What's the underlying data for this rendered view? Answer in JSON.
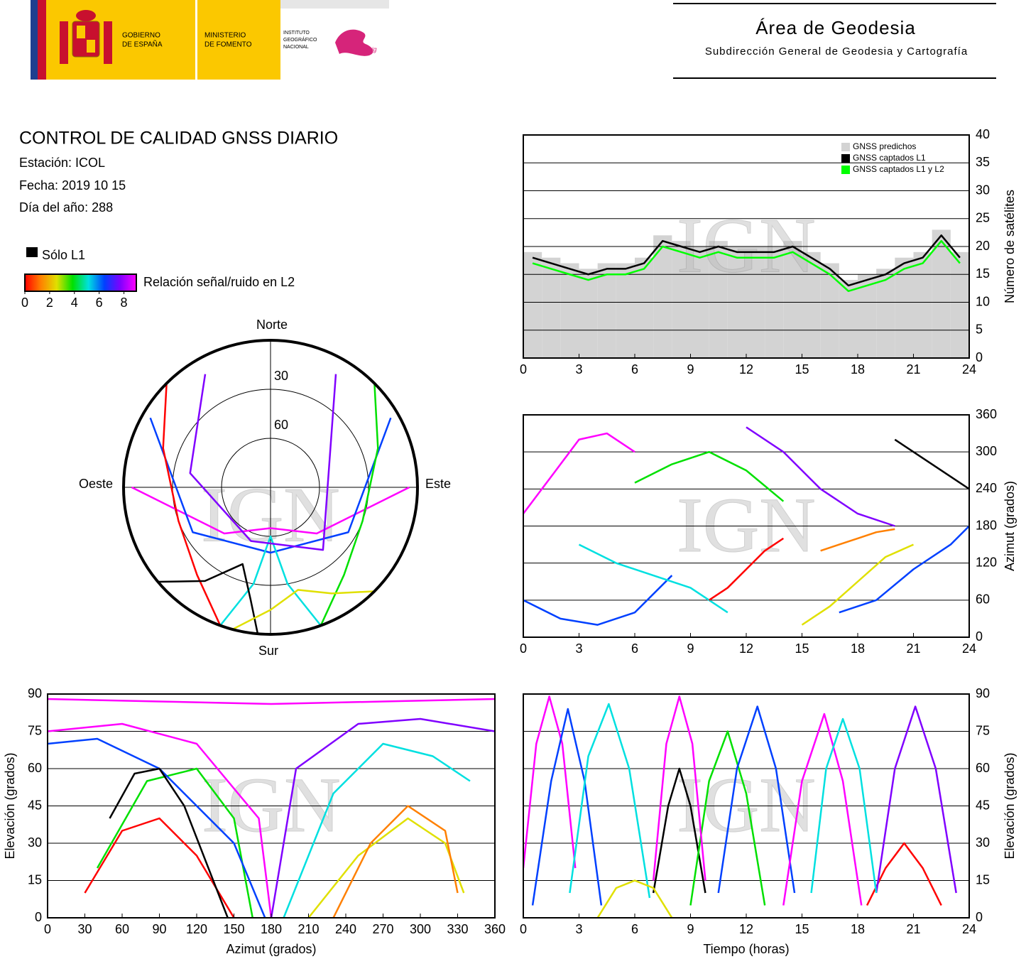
{
  "header": {
    "gobierno": [
      "GOBIERNO",
      "DE ESPAÑA"
    ],
    "ministerio": [
      "MINISTERIO",
      "DE FOMENTO"
    ],
    "instituto": [
      "INSTITUTO",
      "GEOGRÁFICO",
      "NACIONAL"
    ],
    "cnig": "cnig",
    "area": "Área de Geodesia",
    "subdireccion": "Subdirección General de Geodesia y Cartografía"
  },
  "info": {
    "title": "CONTROL DE CALIDAD GNSS DIARIO",
    "station": "Estación: ICOL",
    "date": "Fecha: 2019 10 15",
    "doy": "Día del año: 288",
    "legend_l1": "Sólo L1",
    "legend_l1_color": "#000000",
    "legend_snr": "Relación señal/ruido en L2",
    "colorbar": {
      "colors": [
        "#ff0000",
        "#ff8000",
        "#e0e000",
        "#00e000",
        "#00e0e0",
        "#0040ff",
        "#8000ff",
        "#ff00ff"
      ],
      "lim": [
        0,
        9
      ],
      "ticks": [
        0,
        2,
        4,
        6,
        8
      ]
    }
  },
  "chart_data": [
    {
      "type": "line",
      "watermark": "IGN",
      "y_label": "Número de satélites",
      "y_axis_side": "right",
      "legend": "top-right",
      "grid": true,
      "xlim": [
        0,
        24
      ],
      "xticks": [
        0,
        3,
        6,
        9,
        12,
        15,
        18,
        21,
        24
      ],
      "ylim": [
        0,
        40
      ],
      "yticks": [
        0,
        5,
        10,
        15,
        20,
        25,
        30,
        35,
        40
      ],
      "x": [
        0.5,
        1.5,
        2.5,
        3.5,
        4.5,
        5.5,
        6.5,
        7.5,
        8.5,
        9.5,
        10.5,
        11.5,
        12.5,
        13.5,
        14.5,
        15.5,
        16.5,
        17.5,
        18.5,
        19.5,
        20.5,
        21.5,
        22.5,
        23.5
      ],
      "series": [
        {
          "name": "GNSS predichos",
          "color": "#d3d3d3",
          "style": "bar",
          "values": [
            19,
            18,
            17,
            16,
            17,
            17,
            18,
            22,
            21,
            20,
            21,
            20,
            20,
            20,
            21,
            19,
            17,
            14,
            15,
            16,
            18,
            19,
            23,
            19
          ]
        },
        {
          "name": "GNSS captados L1",
          "color": "#000000",
          "style": "line",
          "values": [
            18,
            17,
            16,
            15,
            16,
            16,
            17,
            21,
            20,
            19,
            20,
            19,
            19,
            19,
            20,
            18,
            16,
            13,
            14,
            15,
            17,
            18,
            22,
            18
          ]
        },
        {
          "name": "GNSS captados L1 y L2",
          "color": "#00ff00",
          "style": "line",
          "values": [
            17,
            16,
            15,
            14,
            15,
            15,
            16,
            20,
            19,
            18,
            19,
            18,
            18,
            18,
            19,
            17,
            15,
            12,
            13,
            14,
            16,
            17,
            21,
            17
          ]
        }
      ]
    },
    {
      "type": "trace",
      "watermark": "IGN",
      "y_label": "Azimut (grados)",
      "y_axis_side": "right",
      "grid": true,
      "xlim": [
        0,
        24
      ],
      "xticks": [
        0,
        3,
        6,
        9,
        12,
        15,
        18,
        21,
        24
      ],
      "ylim": [
        0,
        360
      ],
      "yticks": [
        0,
        60,
        120,
        180,
        240,
        300,
        360
      ],
      "series": [
        {
          "color": "#ff00ff",
          "x": [
            0,
            1.5,
            3,
            4.5,
            6
          ],
          "values": [
            200,
            260,
            320,
            330,
            300
          ]
        },
        {
          "color": "#0040ff",
          "x": [
            0,
            2,
            4,
            6,
            8
          ],
          "values": [
            60,
            30,
            20,
            40,
            100
          ]
        },
        {
          "color": "#00e0e0",
          "x": [
            3,
            5,
            7,
            9,
            11
          ],
          "values": [
            150,
            120,
            100,
            80,
            40
          ]
        },
        {
          "color": "#00e000",
          "x": [
            6,
            8,
            10,
            12,
            14
          ],
          "values": [
            250,
            280,
            300,
            270,
            220
          ]
        },
        {
          "color": "#ff0000",
          "x": [
            10,
            11,
            12,
            13,
            14
          ],
          "values": [
            60,
            80,
            110,
            140,
            160
          ]
        },
        {
          "color": "#8000ff",
          "x": [
            12,
            14,
            16,
            18,
            20
          ],
          "values": [
            340,
            300,
            240,
            200,
            180
          ]
        },
        {
          "color": "#e0e000",
          "x": [
            15,
            16.5,
            18,
            19.5,
            21
          ],
          "values": [
            20,
            50,
            90,
            130,
            150
          ]
        },
        {
          "color": "#000000",
          "x": [
            20,
            21,
            22,
            23,
            24
          ],
          "values": [
            320,
            300,
            280,
            260,
            240
          ]
        },
        {
          "color": "#ff8000",
          "x": [
            16,
            17,
            18,
            19,
            20
          ],
          "values": [
            140,
            150,
            160,
            170,
            175
          ]
        },
        {
          "color": "#0040ff",
          "x": [
            17,
            19,
            21,
            23,
            24
          ],
          "values": [
            40,
            60,
            110,
            150,
            180
          ]
        }
      ]
    },
    {
      "type": "polar",
      "watermark": "IGN",
      "labels": {
        "north": "Norte",
        "south": "Sur",
        "east": "Este",
        "west": "Oeste"
      },
      "rlim": [
        90,
        0
      ],
      "rticks": [
        30,
        60
      ],
      "series": [
        {
          "color": "#ff00ff",
          "azimuth": [
            270,
            225,
            180,
            135,
            90
          ],
          "values": [
            5,
            50,
            65,
            50,
            5
          ]
        },
        {
          "color": "#0040ff",
          "azimuth": [
            300,
            240,
            180,
            120,
            60
          ],
          "values": [
            5,
            35,
            50,
            35,
            5
          ]
        },
        {
          "color": "#00e0e0",
          "azimuth": [
            200,
            190,
            180,
            170,
            160
          ],
          "values": [
            0,
            30,
            60,
            30,
            0
          ]
        },
        {
          "color": "#ff0000",
          "azimuth": [
            315,
            290,
            250,
            220,
            200
          ],
          "values": [
            0,
            20,
            30,
            20,
            0
          ]
        },
        {
          "color": "#00e000",
          "azimuth": [
            45,
            70,
            110,
            140,
            160
          ],
          "values": [
            0,
            20,
            30,
            20,
            0
          ]
        },
        {
          "color": "#000000",
          "azimuth": [
            230,
            215,
            200,
            190,
            185
          ],
          "values": [
            0,
            20,
            40,
            20,
            0
          ]
        },
        {
          "color": "#8000ff",
          "azimuth": [
            330,
            280,
            200,
            140,
            30
          ],
          "values": [
            10,
            40,
            55,
            40,
            10
          ]
        },
        {
          "color": "#e0e000",
          "azimuth": [
            135,
            150,
            165,
            180,
            195
          ],
          "values": [
            0,
            15,
            25,
            15,
            0
          ]
        }
      ]
    },
    {
      "type": "trace",
      "watermark": "IGN",
      "x_label": "Azimut (grados)",
      "y_label": "Elevación (grados)",
      "y_axis_side": "left",
      "grid": true,
      "xlim": [
        0,
        360
      ],
      "xticks": [
        0,
        30,
        60,
        90,
        120,
        150,
        180,
        210,
        240,
        270,
        300,
        330,
        360
      ],
      "ylim": [
        0,
        90
      ],
      "yticks": [
        0,
        15,
        30,
        45,
        60,
        75,
        90
      ],
      "series": [
        {
          "color": "#ff0000",
          "x": [
            30,
            60,
            90,
            120,
            150
          ],
          "values": [
            10,
            35,
            40,
            25,
            0
          ]
        },
        {
          "color": "#00e000",
          "x": [
            40,
            80,
            120,
            150,
            165
          ],
          "values": [
            20,
            55,
            60,
            40,
            0
          ]
        },
        {
          "color": "#0040ff",
          "x": [
            0,
            40,
            90,
            150,
            175
          ],
          "values": [
            70,
            72,
            60,
            30,
            0
          ]
        },
        {
          "color": "#ff00ff",
          "x": [
            0,
            60,
            120,
            170,
            180
          ],
          "values": [
            75,
            78,
            70,
            40,
            0
          ]
        },
        {
          "color": "#00e0e0",
          "x": [
            190,
            230,
            270,
            310,
            340
          ],
          "values": [
            0,
            50,
            70,
            65,
            55
          ]
        },
        {
          "color": "#8000ff",
          "x": [
            180,
            200,
            250,
            300,
            360
          ],
          "values": [
            0,
            60,
            78,
            80,
            75
          ]
        },
        {
          "color": "#e0e000",
          "x": [
            210,
            250,
            290,
            320,
            335
          ],
          "values": [
            0,
            25,
            40,
            30,
            10
          ]
        },
        {
          "color": "#000000",
          "x": [
            50,
            70,
            90,
            110,
            145
          ],
          "values": [
            40,
            58,
            60,
            45,
            0
          ]
        },
        {
          "color": "#ff8000",
          "x": [
            230,
            260,
            290,
            320,
            330
          ],
          "values": [
            0,
            30,
            45,
            35,
            10
          ]
        },
        {
          "color": "#ff00ff",
          "x": [
            0,
            90,
            180,
            270,
            360
          ],
          "values": [
            88,
            87,
            86,
            87,
            88
          ]
        }
      ]
    },
    {
      "type": "trace",
      "watermark": "IGN",
      "x_label": "Tiempo (horas)",
      "y_label": "Elevación (grados)",
      "y_axis_side": "right",
      "grid": true,
      "xlim": [
        0,
        24
      ],
      "xticks": [
        0,
        3,
        6,
        9,
        12,
        15,
        18,
        21,
        24
      ],
      "ylim": [
        0,
        90
      ],
      "yticks": [
        0,
        15,
        30,
        45,
        60,
        75,
        90
      ],
      "series": [
        {
          "color": "#ff00ff",
          "x": [
            0,
            0.7,
            1.4,
            2.1,
            2.8
          ],
          "values": [
            20,
            70,
            89,
            70,
            20
          ]
        },
        {
          "color": "#0040ff",
          "x": [
            0.5,
            1.5,
            2.4,
            3.3,
            4.2
          ],
          "values": [
            5,
            55,
            84,
            55,
            5
          ]
        },
        {
          "color": "#00e0e0",
          "x": [
            2.5,
            3.5,
            4.6,
            5.7,
            6.8
          ],
          "values": [
            10,
            65,
            86,
            60,
            8
          ]
        },
        {
          "color": "#000000",
          "x": [
            7,
            7.8,
            8.4,
            9,
            9.8
          ],
          "values": [
            10,
            45,
            60,
            45,
            10
          ]
        },
        {
          "color": "#00e000",
          "x": [
            9,
            10,
            11,
            12,
            13
          ],
          "values": [
            5,
            55,
            75,
            50,
            5
          ]
        },
        {
          "color": "#0040ff",
          "x": [
            10.5,
            11.5,
            12.6,
            13.6,
            14.6
          ],
          "values": [
            10,
            60,
            85,
            60,
            10
          ]
        },
        {
          "color": "#ff00ff",
          "x": [
            14,
            15,
            16.2,
            17.2,
            18.2
          ],
          "values": [
            5,
            55,
            82,
            55,
            5
          ]
        },
        {
          "color": "#ff0000",
          "x": [
            18.5,
            19.5,
            20.5,
            21.5,
            22.5
          ],
          "values": [
            5,
            20,
            30,
            20,
            5
          ]
        },
        {
          "color": "#8000ff",
          "x": [
            19,
            20,
            21.1,
            22.2,
            23.3
          ],
          "values": [
            10,
            60,
            85,
            60,
            10
          ]
        },
        {
          "color": "#e0e000",
          "x": [
            4,
            5,
            6,
            7,
            8
          ],
          "values": [
            0,
            12,
            15,
            12,
            0
          ]
        },
        {
          "color": "#ff00ff",
          "x": [
            7,
            7.7,
            8.4,
            9.1,
            9.8
          ],
          "values": [
            15,
            70,
            89,
            70,
            15
          ]
        },
        {
          "color": "#00e0e0",
          "x": [
            15.5,
            16.3,
            17.2,
            18.1,
            19
          ],
          "values": [
            10,
            60,
            80,
            60,
            10
          ]
        }
      ]
    }
  ]
}
